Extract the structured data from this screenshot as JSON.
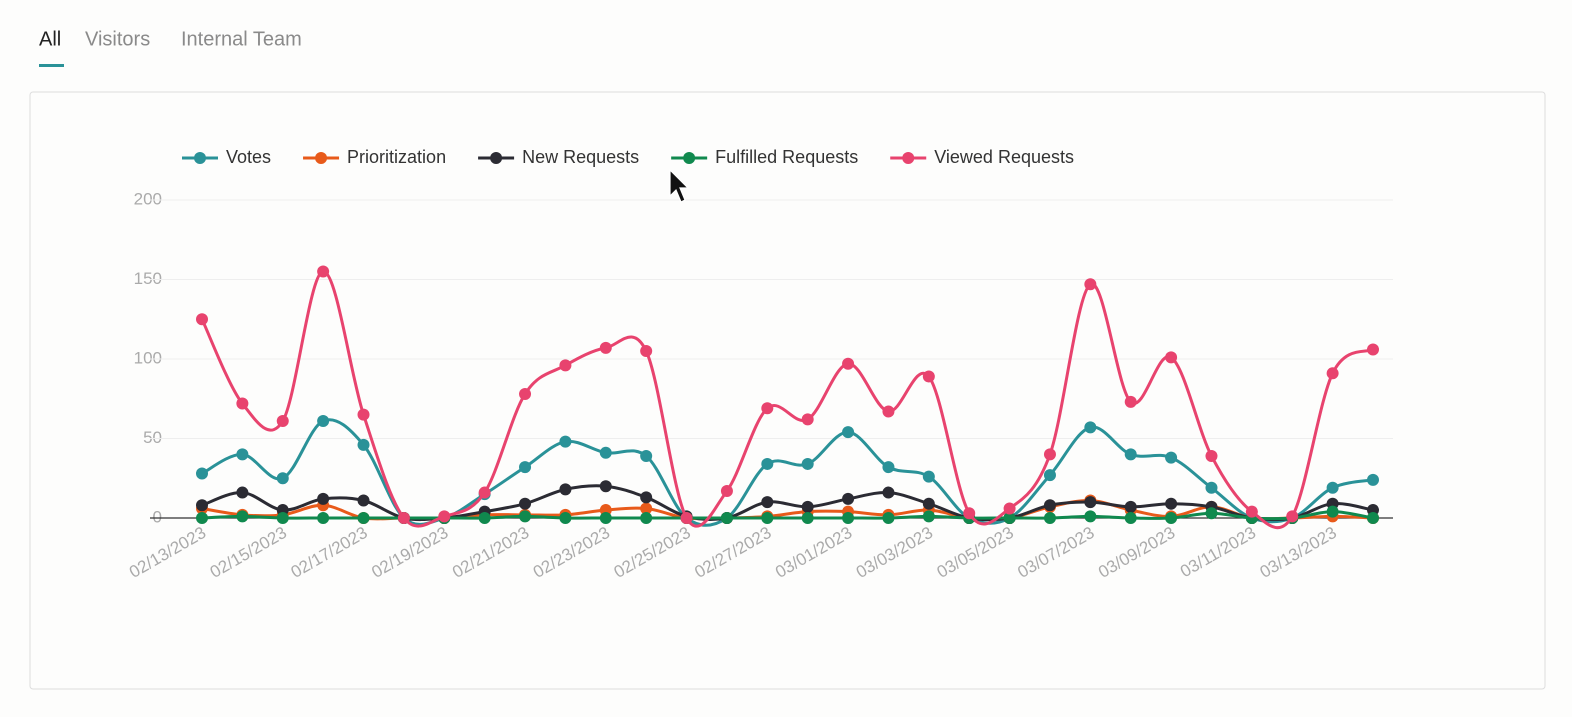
{
  "tabs": [
    "All",
    "Visitors",
    "Internal Team"
  ],
  "chart_data": {
    "type": "line",
    "categories": [
      "02/13/2023",
      null,
      "02/15/2023",
      null,
      "02/17/2023",
      null,
      "02/19/2023",
      null,
      "02/21/2023",
      null,
      "02/23/2023",
      null,
      "02/25/2023",
      null,
      "02/27/2023",
      null,
      "03/01/2023",
      null,
      "03/03/2023",
      null,
      "03/05/2023",
      null,
      "03/07/2023",
      null,
      "03/09/2023",
      null,
      "03/11/2023",
      null,
      "03/13/2023",
      null
    ],
    "series": [
      {
        "name": "Votes",
        "color": "#2a9298",
        "values": [
          28,
          40,
          25,
          61,
          46,
          0,
          0,
          15,
          32,
          48,
          41,
          39,
          0,
          0,
          34,
          34,
          54,
          32,
          26,
          0,
          0,
          27,
          57,
          40,
          38,
          19,
          0,
          0,
          19,
          24
        ]
      },
      {
        "name": "Prioritization",
        "color": "#e85a1a",
        "values": [
          6,
          2,
          2,
          8,
          0,
          0,
          0,
          2,
          2,
          2,
          5,
          6,
          0,
          0,
          1,
          4,
          4,
          2,
          5,
          0,
          0,
          7,
          11,
          5,
          1,
          7,
          0,
          0,
          1,
          0
        ]
      },
      {
        "name": "New Requests",
        "color": "#2b2b33",
        "values": [
          8,
          16,
          5,
          12,
          11,
          0,
          0,
          4,
          9,
          18,
          20,
          13,
          1,
          0,
          10,
          7,
          12,
          16,
          9,
          0,
          0,
          8,
          10,
          7,
          9,
          7,
          0,
          0,
          9,
          5
        ]
      },
      {
        "name": "Fulfilled Requests",
        "color": "#10894e",
        "values": [
          0,
          1,
          0,
          0,
          0,
          0,
          0,
          0,
          1,
          0,
          0,
          0,
          0,
          0,
          0,
          0,
          0,
          0,
          1,
          0,
          0,
          0,
          1,
          0,
          0,
          3,
          0,
          0,
          4,
          0
        ]
      },
      {
        "name": "Viewed Requests",
        "color": "#e8436e",
        "values": [
          125,
          72,
          61,
          155,
          65,
          0,
          1,
          16,
          78,
          96,
          107,
          105,
          0,
          17,
          69,
          62,
          97,
          67,
          89,
          3,
          6,
          40,
          147,
          73,
          101,
          39,
          4,
          1,
          91,
          106
        ]
      }
    ],
    "ylim": [
      0,
      200
    ],
    "yticks": [
      0,
      50,
      100,
      150,
      200
    ],
    "grid": true,
    "legend": "top"
  }
}
